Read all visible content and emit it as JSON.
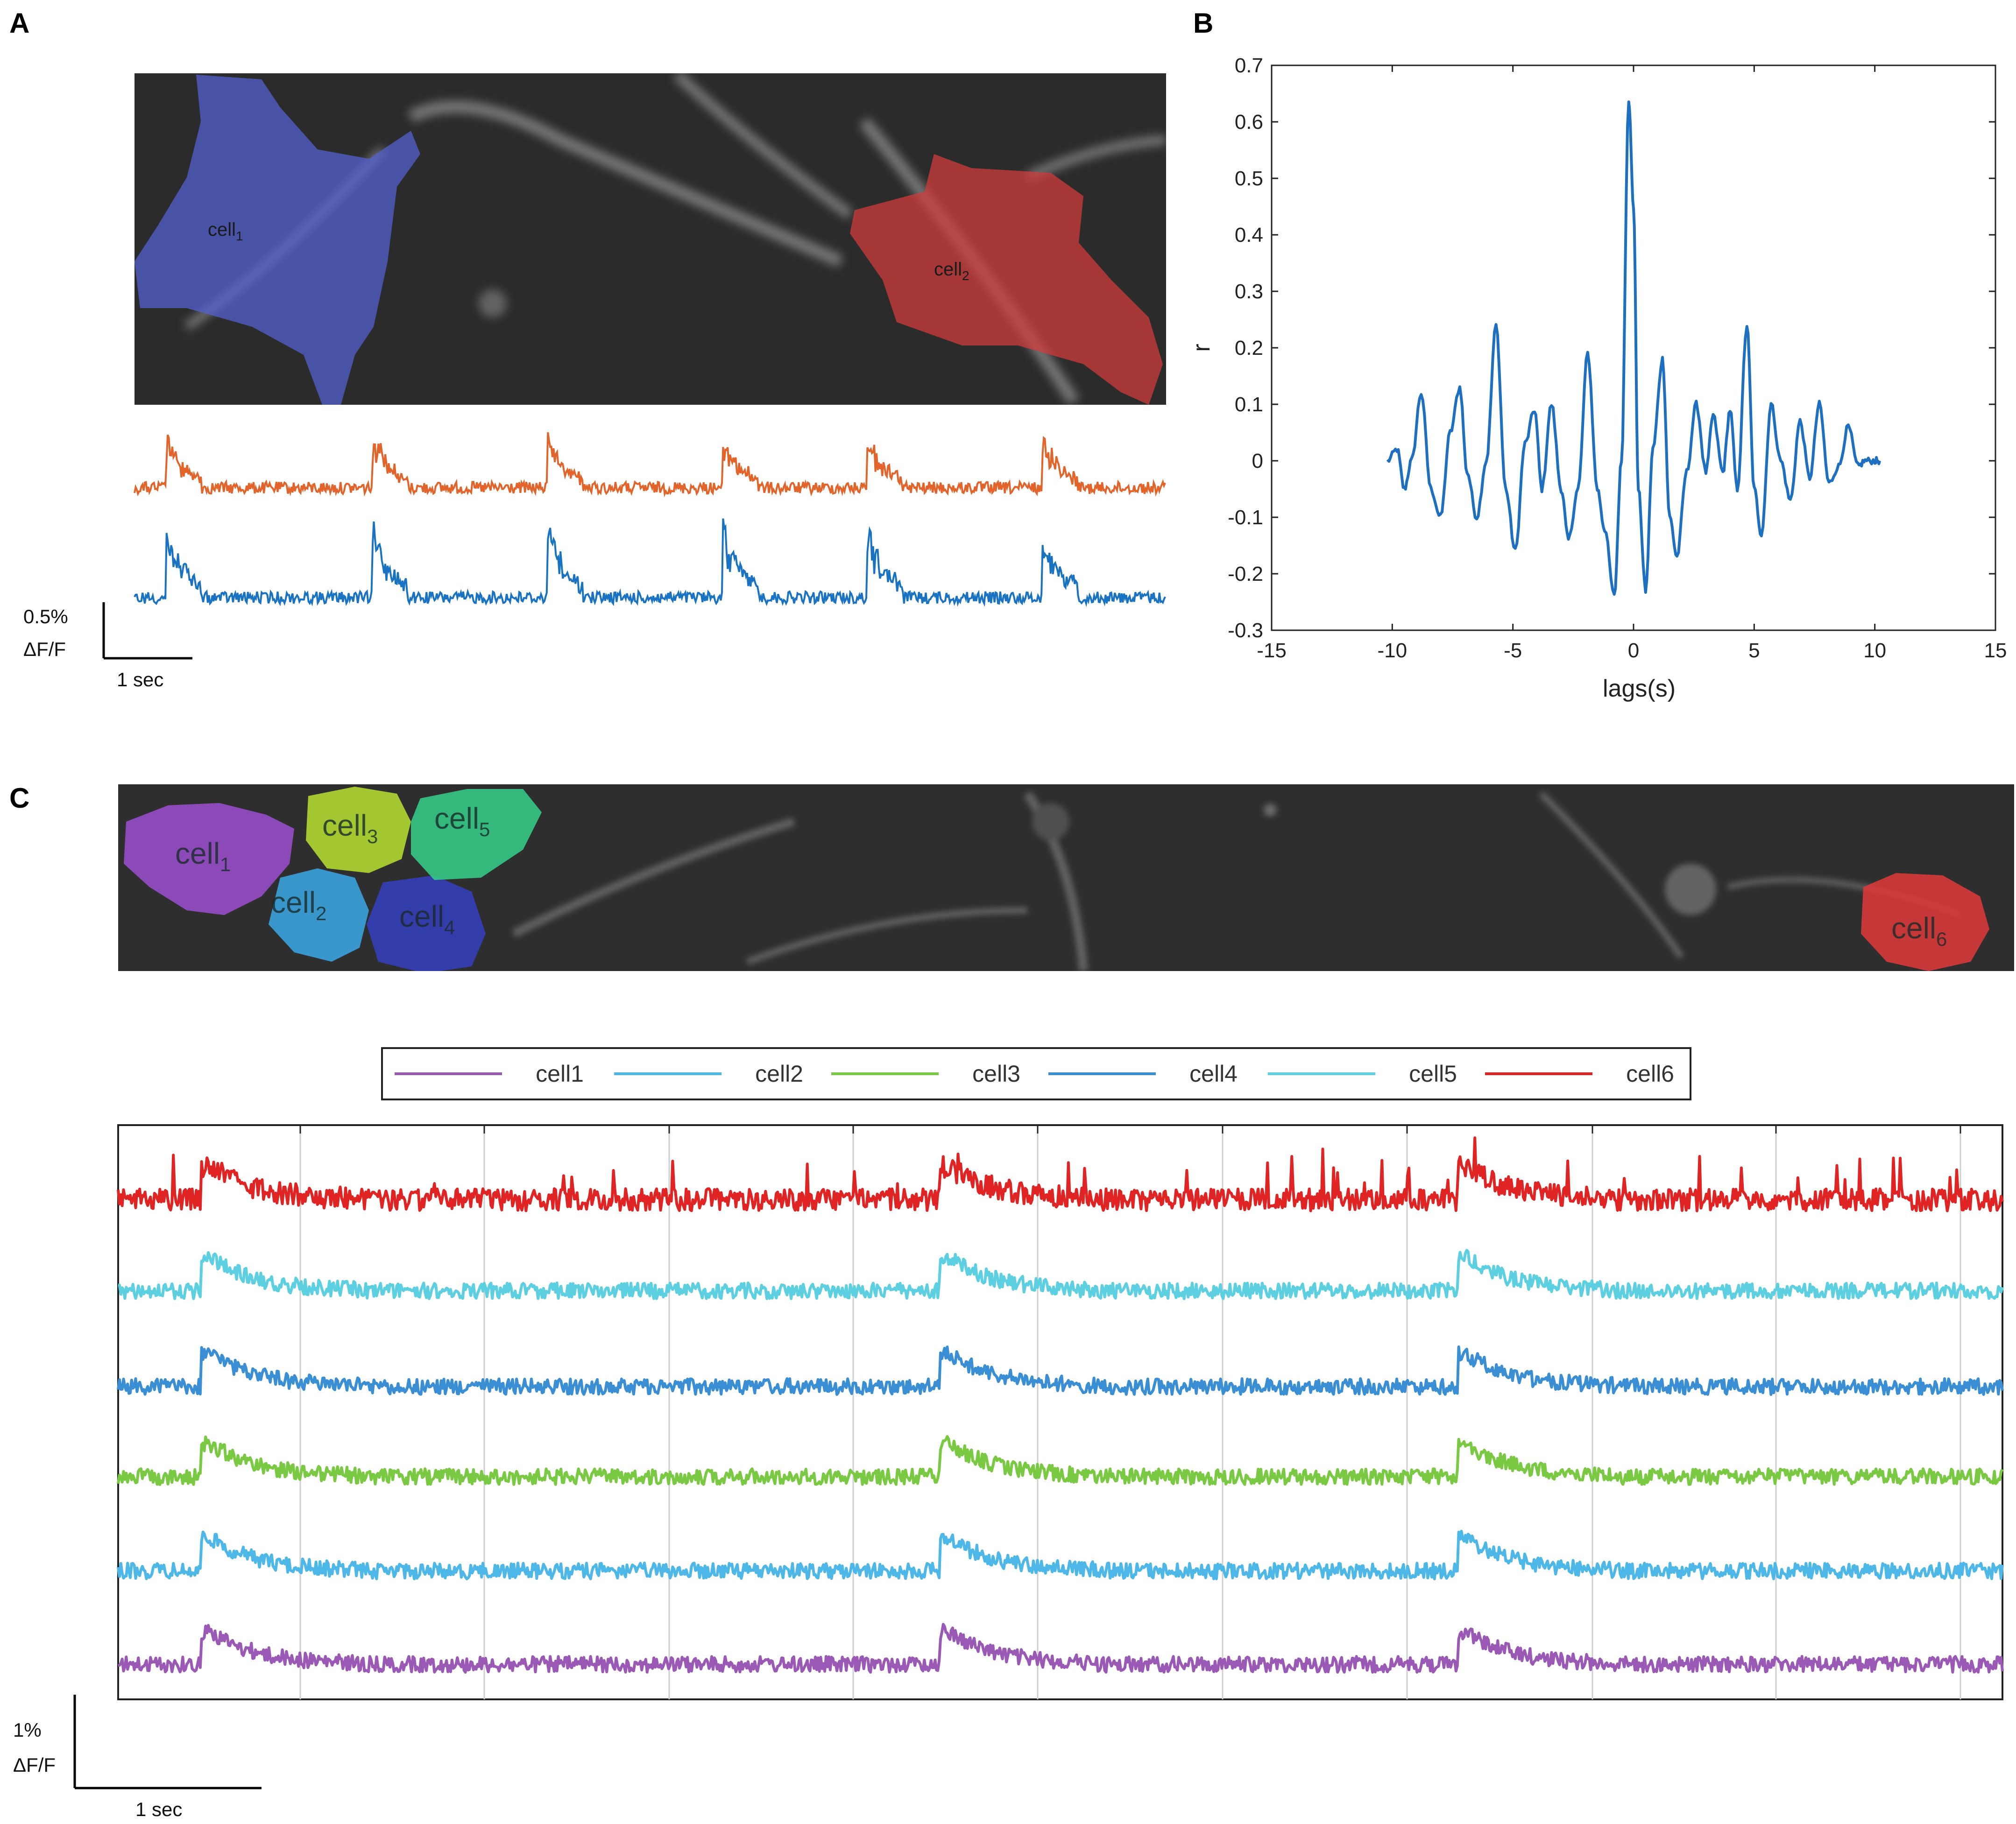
{
  "panels": {
    "a": {
      "letter": "A",
      "cells": [
        {
          "name": "cell",
          "sub": "1",
          "color": "#5563d6"
        },
        {
          "name": "cell",
          "sub": "2",
          "color": "#d63c3c"
        }
      ],
      "traces": [
        {
          "color": "#e2642a"
        },
        {
          "color": "#1a73c2"
        }
      ],
      "scale_bar": {
        "amplitude": "0.5%",
        "unit": "ΔF/F",
        "time": "1 sec"
      }
    },
    "b": {
      "letter": "B"
    },
    "c": {
      "letter": "C",
      "cells": [
        {
          "name": "cell",
          "sub": "1",
          "color": "#9b4fd0"
        },
        {
          "name": "cell",
          "sub": "2",
          "color": "#3aa8e6"
        },
        {
          "name": "cell",
          "sub": "3",
          "color": "#b8e030"
        },
        {
          "name": "cell",
          "sub": "4",
          "color": "#3440c0"
        },
        {
          "name": "cell",
          "sub": "5",
          "color": "#35d08a"
        },
        {
          "name": "cell",
          "sub": "6",
          "color": "#e03a3a"
        }
      ],
      "scale_bar": {
        "amplitude": "1%",
        "unit": "ΔF/F",
        "time": "1 sec"
      }
    }
  },
  "chart_data": [
    {
      "panel": "B",
      "type": "line",
      "xlabel": "lags(s)",
      "ylabel": "r",
      "xlim": [
        -15,
        15
      ],
      "ylim": [
        -0.3,
        0.7
      ],
      "xticks": [
        "-15",
        "-10",
        "-5",
        "0",
        "5",
        "10",
        "15"
      ],
      "yticks": [
        "-0.3",
        "-0.2",
        "-0.1",
        "0",
        "0.1",
        "0.2",
        "0.3",
        "0.4",
        "0.5",
        "0.6",
        "0.7"
      ],
      "grid": false,
      "series": [
        {
          "color": "#1f6fc0",
          "x": [
            -10.2,
            -9.8,
            -9.5,
            -9.2,
            -8.8,
            -8.4,
            -8.0,
            -7.6,
            -7.2,
            -6.9,
            -6.5,
            -6.1,
            -5.7,
            -5.3,
            -4.9,
            -4.5,
            -4.1,
            -3.8,
            -3.4,
            -3.0,
            -2.7,
            -2.3,
            -1.9,
            -1.5,
            -1.2,
            -0.8,
            -0.5,
            -0.2,
            0.0,
            0.2,
            0.5,
            0.8,
            1.2,
            1.5,
            1.8,
            2.2,
            2.6,
            3.0,
            3.3,
            3.7,
            4.0,
            4.3,
            4.7,
            5.0,
            5.3,
            5.7,
            6.1,
            6.5,
            6.9,
            7.3,
            7.7,
            8.1,
            8.5,
            8.9,
            9.3,
            9.6,
            10.0,
            10.2
          ],
          "y": [
            0.0,
            0.02,
            -0.05,
            0.0,
            0.12,
            -0.05,
            -0.1,
            0.05,
            0.13,
            -0.02,
            -0.1,
            0.0,
            0.24,
            -0.05,
            -0.16,
            0.03,
            0.09,
            -0.05,
            0.1,
            -0.05,
            -0.14,
            -0.05,
            0.19,
            -0.05,
            -0.12,
            -0.24,
            0.0,
            0.64,
            0.45,
            -0.05,
            -0.23,
            0.02,
            0.18,
            -0.1,
            -0.17,
            -0.02,
            0.1,
            -0.02,
            0.08,
            -0.02,
            0.09,
            -0.05,
            0.24,
            -0.05,
            -0.13,
            0.1,
            0.0,
            -0.07,
            0.07,
            -0.03,
            0.1,
            -0.04,
            -0.01,
            0.06,
            -0.01,
            0.0,
            0.0,
            0.0
          ]
        }
      ]
    },
    {
      "panel": "C",
      "type": "line",
      "grid": true,
      "legend_position": "top-center",
      "series": [
        {
          "name": "cell1",
          "color": "#9b59b6",
          "transients_s": [
            0.5,
            4.5,
            7.3
          ],
          "baseline_offset": 0
        },
        {
          "name": "cell2",
          "color": "#4db8e8",
          "transients_s": [
            0.5,
            4.5,
            7.3
          ],
          "baseline_offset": 1
        },
        {
          "name": "cell3",
          "color": "#7ac943",
          "transients_s": [
            0.5,
            4.5,
            7.3
          ],
          "baseline_offset": 2
        },
        {
          "name": "cell4",
          "color": "#3a8fd4",
          "transients_s": [
            0.5,
            4.5,
            7.3
          ],
          "baseline_offset": 3
        },
        {
          "name": "cell5",
          "color": "#5ccfe0",
          "transients_s": [
            0.5,
            4.5,
            7.3
          ],
          "baseline_offset": 4
        },
        {
          "name": "cell6",
          "color": "#e02424",
          "transients_s": [
            0.5,
            4.5,
            7.3
          ],
          "baseline_offset": 5
        }
      ]
    }
  ]
}
